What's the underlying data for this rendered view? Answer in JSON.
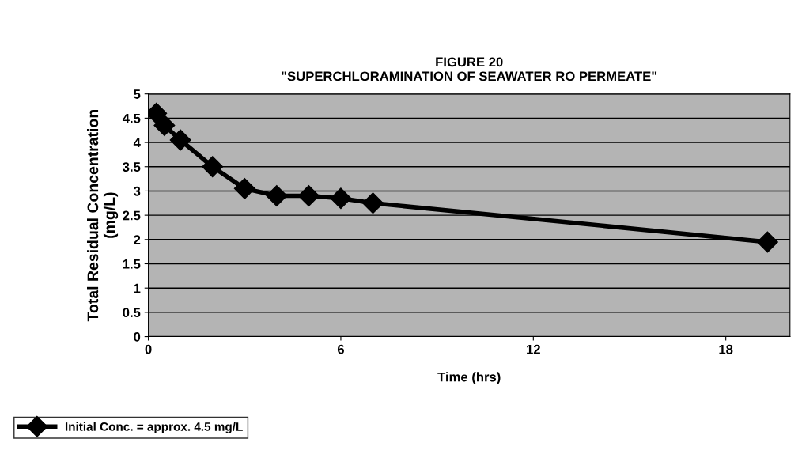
{
  "chart_data": {
    "type": "line",
    "title": "FIGURE 20\n\"SUPERCHLORAMINATION OF SEAWATER RO PERMEATE\"",
    "xlabel": "Time (hrs)",
    "ylabel": "Total Residual Concentration\n(mg/L)",
    "series": [
      {
        "name": "Initial Conc. = approx. 4.5 mg/L",
        "color": "#000000",
        "x": [
          0.25,
          0.5,
          1,
          2,
          3,
          4,
          5,
          6,
          7,
          19.3
        ],
        "values": [
          4.6,
          4.35,
          4.05,
          3.5,
          3.05,
          2.9,
          2.9,
          2.85,
          2.75,
          1.95
        ]
      }
    ],
    "xlim": [
      0,
      20
    ],
    "xticks": [
      0,
      6,
      12,
      18
    ],
    "ylim": [
      0,
      5
    ],
    "yticks": [
      0,
      0.5,
      1,
      1.5,
      2,
      2.5,
      3,
      3.5,
      4,
      4.5,
      5
    ],
    "grid": "y",
    "legend": "bottom left",
    "marker": "diamond",
    "line_style": "solid"
  }
}
